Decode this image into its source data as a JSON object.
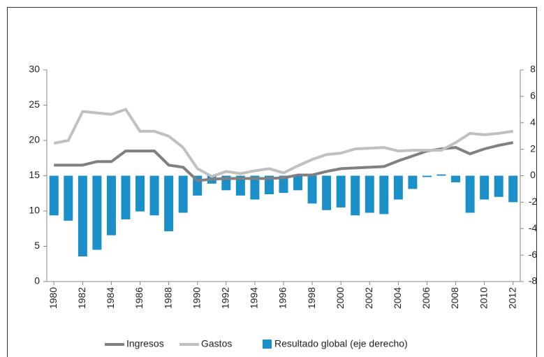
{
  "chart_data": {
    "type": "line_bar",
    "x": [
      1980,
      1981,
      1982,
      1983,
      1984,
      1985,
      1986,
      1987,
      1988,
      1989,
      1990,
      1991,
      1992,
      1993,
      1994,
      1995,
      1996,
      1997,
      1998,
      1999,
      2000,
      2001,
      2002,
      2003,
      2004,
      2005,
      2006,
      2007,
      2008,
      2009,
      2010,
      2011,
      2012
    ],
    "xlim": [
      1980,
      2012
    ],
    "xticks": [
      1980,
      1982,
      1984,
      1986,
      1988,
      1990,
      1992,
      1994,
      1996,
      1998,
      2000,
      2002,
      2004,
      2006,
      2008,
      2010,
      2012
    ],
    "ylim": [
      0,
      30
    ],
    "yticks": [
      0,
      5,
      10,
      15,
      20,
      25,
      30
    ],
    "y2lim": [
      -8,
      8
    ],
    "y2ticks": [
      -8,
      -6,
      -4,
      -2,
      0,
      2,
      4,
      6,
      8
    ],
    "series": [
      {
        "name": "Ingresos",
        "type": "line",
        "color": "#808080",
        "values": [
          16.5,
          16.5,
          16.5,
          17,
          17,
          18.5,
          18.5,
          18.5,
          16.5,
          16.2,
          14.3,
          14.5,
          14.6,
          14.6,
          14.6,
          14.6,
          14.7,
          15.1,
          15.1,
          15.6,
          16,
          16.1,
          16.2,
          16.3,
          17.1,
          17.8,
          18.5,
          18.8,
          19,
          18.1,
          18.8,
          19.3,
          19.7
        ]
      },
      {
        "name": "Gastos",
        "type": "line",
        "color": "#c0c0c0",
        "values": [
          19.6,
          20,
          24.1,
          23.9,
          23.7,
          24.4,
          21.3,
          21.3,
          20.6,
          19,
          16,
          14.9,
          15.6,
          15.3,
          15.7,
          16,
          15.4,
          16.4,
          17.3,
          18,
          18.2,
          18.8,
          18.9,
          19,
          18.5,
          18.6,
          18.6,
          18.6,
          19.7,
          21,
          20.8,
          21,
          21.3
        ]
      },
      {
        "name": "Resultado global (eje derecho)",
        "type": "bar",
        "axis": "y2",
        "color": "#1b8fc8",
        "values": [
          -3.0,
          -3.4,
          -6.1,
          -5.6,
          -4.5,
          -3.3,
          -2.7,
          -3.0,
          -4.2,
          -2.8,
          -1.5,
          -0.6,
          -1.1,
          -1.5,
          -1.8,
          -1.4,
          -1.3,
          -1.1,
          -2.1,
          -2.6,
          -2.4,
          -3.0,
          -2.8,
          -2.9,
          -1.8,
          -1.0,
          -0.1,
          0.1,
          -0.5,
          -2.8,
          -1.8,
          -1.6,
          -2.0
        ]
      }
    ]
  }
}
